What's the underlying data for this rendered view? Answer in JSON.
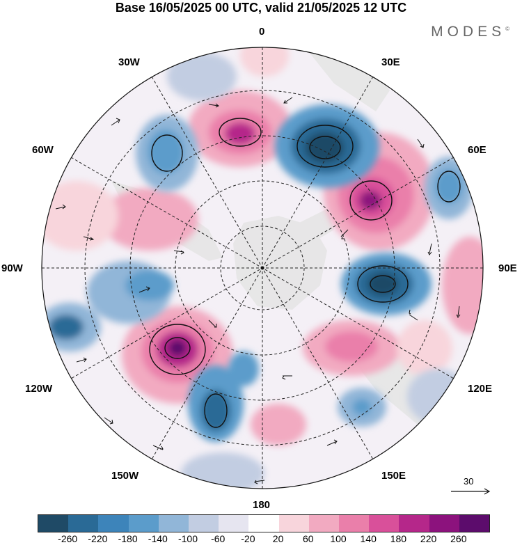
{
  "title": "Base 16/05/2025 00 UTC, valid 21/05/2025 12 UTC",
  "brand": {
    "name": "MODES",
    "mark": "©"
  },
  "longitude_labels": {
    "top": "0",
    "bottom": "180",
    "left": "90W",
    "right": "90E",
    "lon30w": "30W",
    "lon30e": "30E",
    "lon60w": "60W",
    "lon60e": "60E",
    "lon120w": "120W",
    "lon120e": "120E",
    "lon150w": "150W",
    "lon150e": "150E"
  },
  "reference_vector": {
    "label": "30"
  },
  "colorbar": {
    "ticks": [
      "-260",
      "-220",
      "-180",
      "-140",
      "-100",
      "-60",
      "-20",
      "20",
      "60",
      "100",
      "140",
      "180",
      "220",
      "260"
    ],
    "colors": [
      "#1f4a66",
      "#2a6a96",
      "#3d84ba",
      "#5b9ccb",
      "#91b6d8",
      "#c2cde2",
      "#e6e5f0",
      "#ffffff",
      "#f8d5dc",
      "#f2aac1",
      "#ea7faa",
      "#d9509a",
      "#b5278a",
      "#8c127d",
      "#5c0c6c"
    ]
  },
  "colors": {
    "positive_strong": "#b8278a",
    "negative_strong": "#1f4a66",
    "land": "#e9e9e9"
  }
}
